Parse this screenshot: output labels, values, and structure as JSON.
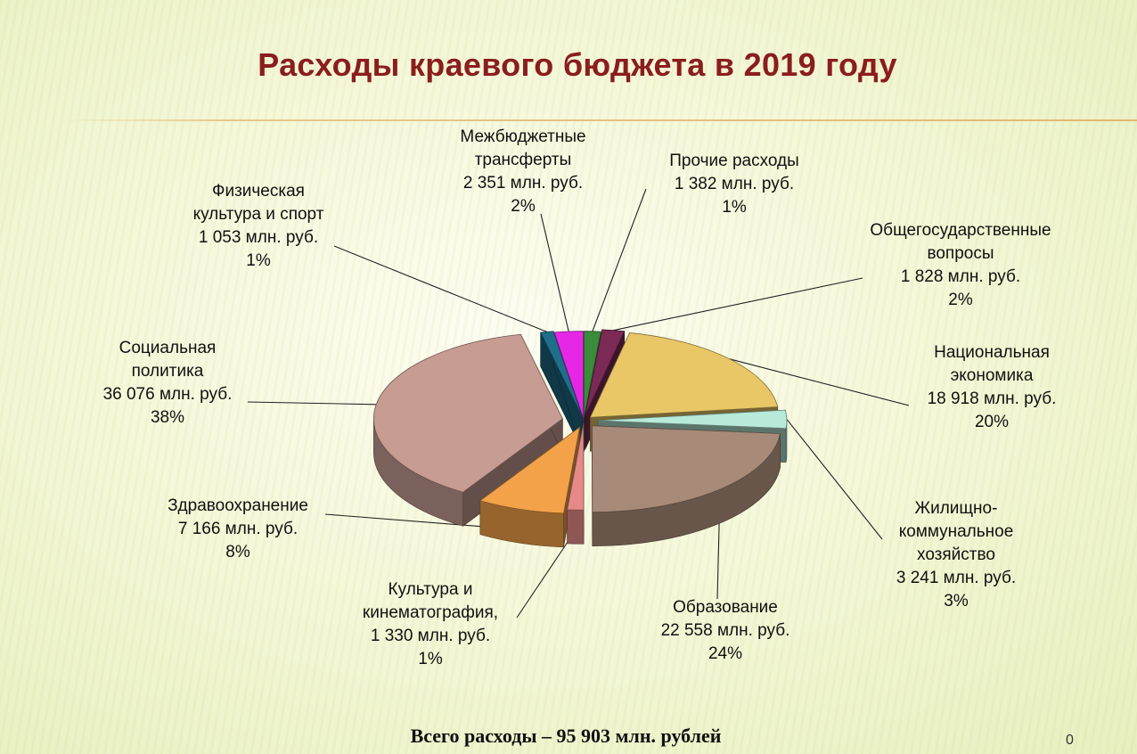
{
  "title": "Расходы краевого бюджета в 2019 году",
  "footer": "Всего расходы – 95 903 млн. рублей",
  "page_number": "0",
  "chart_data": {
    "type": "pie",
    "title": "Расходы краевого бюджета в 2019 году",
    "total_label": "Всего расходы – 95 903 млн. рублей",
    "unit": "млн. руб.",
    "legend": "none (data labels with leader lines)",
    "slices": [
      {
        "name_lines": [
          "Прочие расходы"
        ],
        "value": 1382,
        "value_text": "1 382 млн. руб.",
        "percent": "1%",
        "color": "#3a8b3a"
      },
      {
        "name_lines": [
          "Общегосударственные",
          "вопросы"
        ],
        "value": 1828,
        "value_text": "1 828 млн. руб.",
        "percent": "2%",
        "color": "#7a2a55"
      },
      {
        "name_lines": [
          "Национальная",
          "экономика"
        ],
        "value": 18918,
        "value_text": "18 918 млн. руб.",
        "percent": "20%",
        "color": "#e9c766"
      },
      {
        "name_lines": [
          "Жилищно-",
          "коммунальное",
          "хозяйство"
        ],
        "value": 3241,
        "value_text": "3 241 млн. руб.",
        "percent": "3%",
        "color": "#b7ead8"
      },
      {
        "name_lines": [
          "Образование"
        ],
        "value": 22558,
        "value_text": "22 558 млн. руб.",
        "percent": "24%",
        "color": "#a88a78"
      },
      {
        "name_lines": [
          "Культура и",
          "кинематография,"
        ],
        "value": 1330,
        "value_text": "1 330 млн. руб.",
        "percent": "1%",
        "color": "#e58a88"
      },
      {
        "name_lines": [
          "Здравоохранение"
        ],
        "value": 7166,
        "value_text": "7 166 млн. руб.",
        "percent": "8%",
        "color": "#f3a24a"
      },
      {
        "name_lines": [
          "Социальная",
          "политика"
        ],
        "value": 36076,
        "value_text": "36 076 млн. руб.",
        "percent": "38%",
        "color": "#c79c92"
      },
      {
        "name_lines": [
          "Физическая",
          "культура и спорт"
        ],
        "value": 1053,
        "value_text": "1 053 млн. руб.",
        "percent": "1%",
        "color": "#1f6f8b"
      },
      {
        "name_lines": [
          "Межбюджетные",
          "трансферты"
        ],
        "value": 2351,
        "value_text": "2 351 млн. руб.",
        "percent": "2%",
        "color": "#e628e6"
      }
    ]
  }
}
